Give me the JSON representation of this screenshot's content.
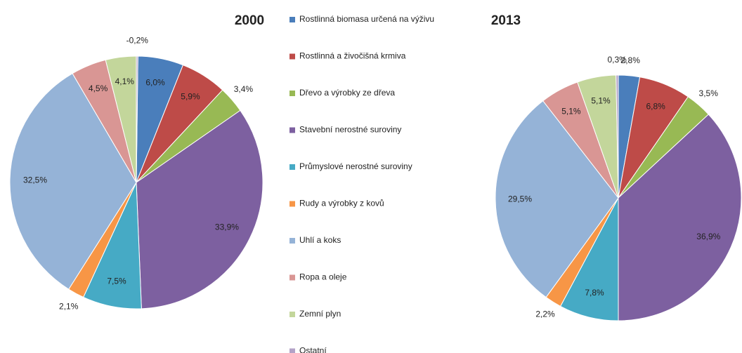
{
  "chart_data": [
    {
      "type": "pie",
      "title": "2000",
      "categories": [
        "Rostlinná biomasa určená na výživu",
        "Rostlinná a živočišná krmiva",
        "Dřevo a výrobky ze dřeva",
        "Stavební nerostné suroviny",
        "Průmyslové nerostné suroviny",
        "Rudy a výrobky z kovů",
        "Uhlí a koks",
        "Ropa a oleje",
        "Zemní plyn",
        "Ostatní"
      ],
      "colors": [
        "#4a7ebb",
        "#be4b48",
        "#98b954",
        "#7d60a0",
        "#46aac5",
        "#f79646",
        "#95b3d7",
        "#d99694",
        "#c3d69b",
        "#b3a2c7"
      ],
      "values": [
        6.0,
        5.9,
        3.4,
        33.9,
        7.5,
        2.1,
        32.5,
        4.5,
        4.1,
        -0.2
      ],
      "value_labels": [
        "6,0%",
        "5,9%",
        "3,4%",
        "33,9%",
        "7,5%",
        "2,1%",
        "32,5%",
        "4,5%",
        "4,1%",
        "-0,2%"
      ]
    },
    {
      "type": "pie",
      "title": "2013",
      "values": [
        2.8,
        6.8,
        3.5,
        36.9,
        7.8,
        2.2,
        29.5,
        5.1,
        5.1,
        0.3
      ],
      "value_labels": [
        "2,8%",
        "6,8%",
        "3,5%",
        "36,9%",
        "7,8%",
        "2,2%",
        "29,5%",
        "5,1%",
        "5,1%",
        "0,3%"
      ]
    }
  ]
}
